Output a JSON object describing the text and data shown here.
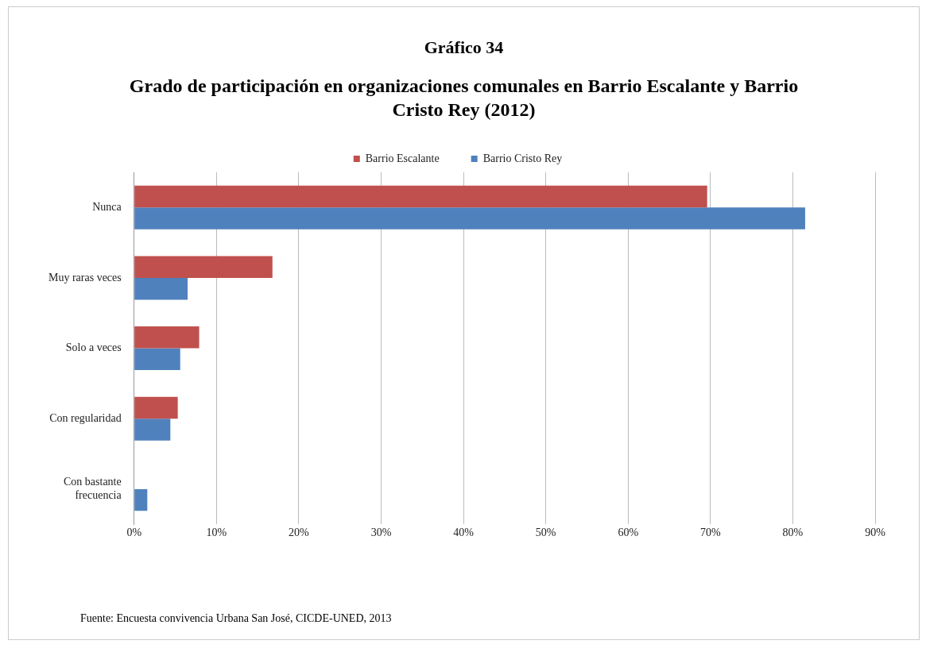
{
  "chart_data": {
    "type": "bar",
    "orientation": "horizontal",
    "title": "Gráfico 34",
    "subtitle": "Grado de participación en organizaciones comunales  en Barrio Escalante y Barrio Cristo Rey (2012)",
    "categories": [
      "Nunca",
      "Muy raras veces",
      "Solo a veces",
      "Con regularidad",
      "Con bastante frecuencia"
    ],
    "series": [
      {
        "name": "Barrio Escalante",
        "color": "#c0504d",
        "values": [
          69.6,
          16.8,
          7.9,
          5.3,
          0
        ]
      },
      {
        "name": "Barrio Cristo Rey",
        "color": "#4f81bd",
        "values": [
          81.5,
          6.5,
          5.6,
          4.4,
          1.6
        ]
      }
    ],
    "xlim": [
      0,
      90
    ],
    "xticks": [
      {
        "value": 0,
        "label": "0%"
      },
      {
        "value": 10,
        "label": "10%"
      },
      {
        "value": 20,
        "label": "20%"
      },
      {
        "value": 30,
        "label": "30%"
      },
      {
        "value": 40,
        "label": "40%"
      },
      {
        "value": 50,
        "label": "50%"
      },
      {
        "value": 60,
        "label": "60%"
      },
      {
        "value": 70,
        "label": "70%"
      },
      {
        "value": 80,
        "label": "80%"
      },
      {
        "value": 90,
        "label": "90%"
      }
    ],
    "grid": "x",
    "legend": "top",
    "annotations": [
      "Fuente: Encuesta convivencia Urbana San José, CICDE-UNED, 2013"
    ]
  }
}
